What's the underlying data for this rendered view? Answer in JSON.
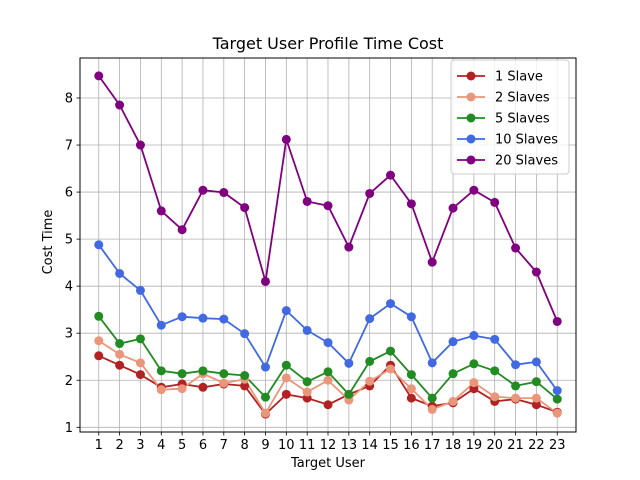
{
  "chart_data": {
    "type": "line",
    "title": "Target User Profile Time Cost",
    "xlabel": "Target User",
    "ylabel": "Cost Time",
    "x": [
      1,
      2,
      3,
      4,
      5,
      6,
      7,
      8,
      9,
      10,
      11,
      12,
      13,
      14,
      15,
      16,
      17,
      18,
      19,
      20,
      21,
      22,
      23
    ],
    "xticks": [
      "1",
      "2",
      "3",
      "4",
      "5",
      "6",
      "7",
      "8",
      "9",
      "10",
      "11",
      "12",
      "13",
      "14",
      "15",
      "16",
      "17",
      "18",
      "19",
      "20",
      "21",
      "22",
      "23"
    ],
    "yticks": [
      "1",
      "2",
      "3",
      "4",
      "5",
      "6",
      "7",
      "8"
    ],
    "xlim": [
      0.1,
      23.9
    ],
    "ylim": [
      0.9,
      8.85
    ],
    "grid": true,
    "legend": "top-right",
    "series": [
      {
        "name": "1 Slave",
        "color": "#b22222",
        "values": [
          2.52,
          2.32,
          2.12,
          1.85,
          1.92,
          1.85,
          1.92,
          1.88,
          1.28,
          1.7,
          1.62,
          1.48,
          1.7,
          1.88,
          2.32,
          1.62,
          1.45,
          1.52,
          1.82,
          1.55,
          1.6,
          1.48,
          1.32
        ]
      },
      {
        "name": "2 Slaves",
        "color": "#e9967a",
        "values": [
          2.84,
          2.55,
          2.37,
          1.8,
          1.82,
          2.14,
          1.94,
          2.02,
          1.3,
          2.05,
          1.75,
          2.0,
          1.58,
          1.98,
          2.24,
          1.82,
          1.38,
          1.55,
          1.95,
          1.65,
          1.62,
          1.62,
          1.3
        ]
      },
      {
        "name": "5 Slaves",
        "color": "#228b22",
        "values": [
          3.36,
          2.78,
          2.88,
          2.2,
          2.14,
          2.2,
          2.14,
          2.1,
          1.64,
          2.32,
          1.97,
          2.18,
          1.7,
          2.4,
          2.62,
          2.12,
          1.62,
          2.14,
          2.35,
          2.2,
          1.88,
          1.97,
          1.6
        ]
      },
      {
        "name": "10 Slaves",
        "color": "#4169e1",
        "values": [
          4.88,
          4.27,
          3.91,
          3.17,
          3.35,
          3.32,
          3.3,
          2.99,
          2.28,
          3.48,
          3.06,
          2.8,
          2.36,
          3.31,
          3.63,
          3.35,
          2.37,
          2.82,
          2.95,
          2.87,
          2.33,
          2.39,
          1.78
        ]
      },
      {
        "name": "20 Slaves",
        "color": "#800080",
        "values": [
          8.47,
          7.85,
          7.0,
          5.6,
          5.2,
          6.04,
          5.99,
          5.67,
          4.1,
          7.12,
          5.8,
          5.71,
          4.83,
          5.97,
          6.36,
          5.75,
          4.51,
          5.66,
          6.04,
          5.78,
          4.81,
          4.3,
          3.25
        ]
      }
    ]
  }
}
